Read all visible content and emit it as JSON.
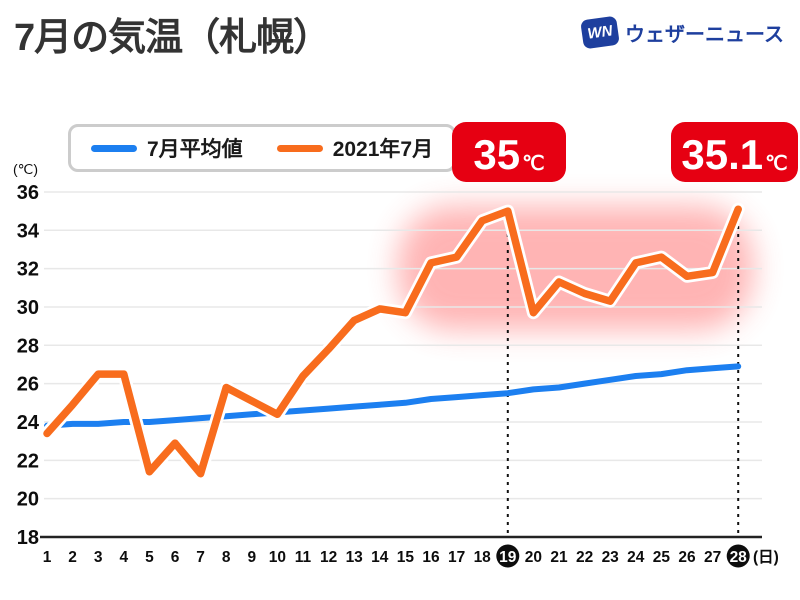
{
  "header": {
    "title": "7月の気温（札幌）",
    "logo": {
      "mark": "WN",
      "name": "ウェザーニュース"
    }
  },
  "theme": {
    "badge_red": "#e60012",
    "highlight_pink": "#ff5a5a",
    "accent_blue": "#1c7ff0",
    "accent_orange": "#f86c1d",
    "logo_blue": "#1e3f9e",
    "axis_color": "#222222",
    "grid_color": "#e8e8e8",
    "label_color": "#0d0d0d"
  },
  "legend": {
    "items": [
      {
        "label": "7月平均値",
        "color": "#1c7ff0"
      },
      {
        "label": "2021年7月",
        "color": "#f86c1d"
      }
    ]
  },
  "badges": [
    {
      "value": "35",
      "unit": "℃",
      "day": 19
    },
    {
      "value": "35.1",
      "unit": "℃",
      "day": 28
    }
  ],
  "chart_data": {
    "type": "line",
    "title": "7月の気温（札幌）",
    "xlabel": "(日)",
    "ylabel": "(℃)",
    "x": [
      1,
      2,
      3,
      4,
      5,
      6,
      7,
      8,
      9,
      10,
      11,
      12,
      13,
      14,
      15,
      16,
      17,
      18,
      19,
      20,
      21,
      22,
      23,
      24,
      25,
      26,
      27,
      28
    ],
    "ylim": [
      18,
      36
    ],
    "yticks": [
      18,
      20,
      22,
      24,
      26,
      28,
      30,
      32,
      34,
      36
    ],
    "grid": true,
    "legend_position": "top-left",
    "highlighted_days": [
      19,
      28
    ],
    "series": [
      {
        "name": "7月平均値",
        "color": "#1c7ff0",
        "values": [
          23.8,
          23.9,
          23.9,
          24.0,
          24.0,
          24.1,
          24.2,
          24.3,
          24.4,
          24.5,
          24.6,
          24.7,
          24.8,
          24.9,
          25.0,
          25.2,
          25.3,
          25.4,
          25.5,
          25.7,
          25.8,
          26.0,
          26.2,
          26.4,
          26.5,
          26.7,
          26.8,
          26.9
        ]
      },
      {
        "name": "2021年7月",
        "color": "#f86c1d",
        "values": [
          23.4,
          24.9,
          26.5,
          26.5,
          21.4,
          22.9,
          21.3,
          25.8,
          25.1,
          24.4,
          26.4,
          27.8,
          29.3,
          29.9,
          29.7,
          32.3,
          32.6,
          34.5,
          35.0,
          29.7,
          31.3,
          30.7,
          30.3,
          32.3,
          32.6,
          31.6,
          31.8,
          35.1
        ]
      }
    ],
    "annotations": [
      {
        "day": 19,
        "text": "35℃"
      },
      {
        "day": 28,
        "text": "35.1℃"
      }
    ],
    "highlight_region": {
      "day_start": 14,
      "day_end": 28,
      "temp_range": [
        28.5,
        35.3
      ],
      "color": "#ff5a5a"
    }
  }
}
